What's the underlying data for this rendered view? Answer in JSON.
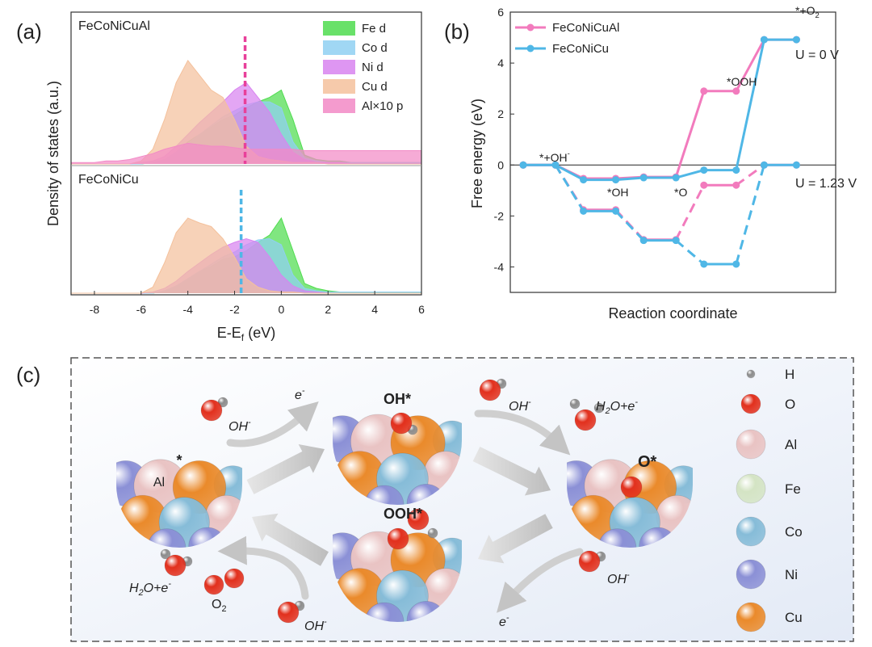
{
  "chart_data": [
    {
      "type": "area",
      "panel_label": "(a)",
      "ylabel": "Density of states (a.u.)",
      "xlabel": [
        "E-E",
        "f",
        " (eV)"
      ],
      "xlim": [
        -9,
        6
      ],
      "xticks": [
        -8,
        -6,
        -4,
        -2,
        0,
        2,
        4,
        6
      ],
      "ylim": [
        0,
        1
      ],
      "legend": "top-right",
      "x": [
        -9,
        -8.5,
        -8,
        -7.5,
        -7,
        -6.5,
        -6,
        -5.5,
        -5,
        -4.5,
        -4,
        -3.5,
        -3,
        -2.5,
        -2,
        -1.5,
        -1,
        -0.5,
        0,
        0.5,
        1,
        1.5,
        2,
        2.5,
        3,
        3.5,
        4,
        4.5,
        5,
        5.5,
        6
      ],
      "subplots": [
        {
          "title": "FeCoNiCuAl",
          "d_band_center": -1.55,
          "d_band_color": "#e8409a",
          "series": [
            {
              "name": "Fe d",
              "color": "#4fdc4f",
              "values": [
                0,
                0,
                0,
                0,
                0,
                0,
                0,
                0.01,
                0.03,
                0.08,
                0.15,
                0.2,
                0.25,
                0.3,
                0.33,
                0.38,
                0.42,
                0.45,
                0.5,
                0.3,
                0.06,
                0.03,
                0.02,
                0.02,
                0.01,
                0.01,
                0.01,
                0.01,
                0.01,
                0.01,
                0.01
              ]
            },
            {
              "name": "Co d",
              "color": "#8fd0f2",
              "values": [
                0,
                0,
                0,
                0,
                0,
                0,
                0,
                0.01,
                0.03,
                0.08,
                0.14,
                0.2,
                0.26,
                0.32,
                0.36,
                0.4,
                0.42,
                0.42,
                0.38,
                0.15,
                0.04,
                0.02,
                0.01,
                0.01,
                0.01,
                0.01,
                0.01,
                0.01,
                0.01,
                0.01,
                0.01
              ]
            },
            {
              "name": "Ni d",
              "color": "#d884f0",
              "values": [
                0,
                0,
                0,
                0,
                0,
                0,
                0.01,
                0.02,
                0.05,
                0.12,
                0.2,
                0.28,
                0.35,
                0.42,
                0.5,
                0.55,
                0.45,
                0.35,
                0.2,
                0.08,
                0.03,
                0.01,
                0.01,
                0.01,
                0,
                0,
                0,
                0,
                0,
                0,
                0
              ]
            },
            {
              "name": "Cu d",
              "color": "#f4c19c",
              "values": [
                0,
                0,
                0,
                0,
                0,
                0,
                0.02,
                0.1,
                0.3,
                0.55,
                0.7,
                0.6,
                0.5,
                0.45,
                0.3,
                0.12,
                0.05,
                0.03,
                0.02,
                0.01,
                0.01,
                0.01,
                0,
                0,
                0,
                0,
                0,
                0,
                0,
                0,
                0
              ]
            },
            {
              "name": "Al×10 p",
              "color": "#f28ac6",
              "values": [
                0.01,
                0.01,
                0.01,
                0.02,
                0.02,
                0.03,
                0.05,
                0.07,
                0.1,
                0.12,
                0.14,
                0.13,
                0.12,
                0.12,
                0.11,
                0.1,
                0.1,
                0.1,
                0.1,
                0.1,
                0.09,
                0.09,
                0.09,
                0.09,
                0.09,
                0.09,
                0.09,
                0.09,
                0.09,
                0.09,
                0.09
              ]
            }
          ]
        },
        {
          "title": "FeCoNiCu",
          "d_band_center": -1.72,
          "d_band_color": "#4fb7e6",
          "series": [
            {
              "color": "#4fdc4f",
              "values": [
                0,
                0,
                0,
                0,
                0,
                0,
                0,
                0,
                0.02,
                0.06,
                0.12,
                0.18,
                0.22,
                0.28,
                0.3,
                0.35,
                0.42,
                0.48,
                0.62,
                0.35,
                0.08,
                0.04,
                0.02,
                0.01,
                0.01,
                0.01,
                0.01,
                0.01,
                0.01,
                0.01,
                0.01
              ]
            },
            {
              "color": "#8fd0f2",
              "values": [
                0,
                0,
                0,
                0,
                0,
                0,
                0,
                0,
                0.02,
                0.06,
                0.12,
                0.18,
                0.24,
                0.3,
                0.34,
                0.4,
                0.44,
                0.45,
                0.4,
                0.15,
                0.04,
                0.02,
                0.01,
                0.01,
                0.01,
                0.01,
                0.01,
                0.01,
                0.01,
                0.01,
                0.01
              ]
            },
            {
              "color": "#d884f0",
              "values": [
                0,
                0,
                0,
                0,
                0,
                0,
                0,
                0.01,
                0.04,
                0.1,
                0.18,
                0.25,
                0.32,
                0.38,
                0.42,
                0.45,
                0.42,
                0.3,
                0.15,
                0.06,
                0.02,
                0.01,
                0,
                0,
                0,
                0,
                0,
                0,
                0,
                0,
                0
              ]
            },
            {
              "color": "#f4c19c",
              "values": [
                0,
                0,
                0,
                0,
                0,
                0,
                0,
                0.05,
                0.25,
                0.5,
                0.62,
                0.58,
                0.55,
                0.45,
                0.3,
                0.12,
                0.05,
                0.02,
                0.01,
                0.01,
                0,
                0,
                0,
                0,
                0,
                0,
                0,
                0,
                0,
                0,
                0
              ]
            }
          ]
        }
      ]
    },
    {
      "type": "step",
      "panel_label": "(b)",
      "ylabel": "Free energy (eV)",
      "xlabel": "Reaction coordinate",
      "ylim": [
        -5,
        6
      ],
      "yticks": [
        -4,
        -2,
        0,
        2,
        4,
        6
      ],
      "legend": "top-left",
      "state_labels": [
        [
          "*+OH",
          "-"
        ],
        [
          "*OH"
        ],
        [
          "*O"
        ],
        [
          "*OOH"
        ],
        [
          "*+O",
          "2"
        ]
      ],
      "annotations": [
        "U = 0 V",
        "U = 1.23 V"
      ],
      "series": [
        {
          "color": "#f27bbd",
          "dashed": true,
          "values": [
            0,
            -1.76,
            -2.93,
            -0.79,
            0
          ]
        },
        {
          "color": "#4fb7e6",
          "dashed": true,
          "values": [
            0,
            -1.81,
            -2.96,
            -3.89,
            0
          ]
        },
        {
          "name": "FeCoNiCuAl",
          "color": "#f27bbd",
          "values": [
            0,
            -0.53,
            -0.47,
            2.9,
            4.92
          ]
        },
        {
          "name": "FeCoNiCu",
          "color": "#4fb7e6",
          "values": [
            0,
            -0.58,
            -0.5,
            -0.2,
            4.92
          ]
        }
      ]
    }
  ],
  "diagram": {
    "panel_label": "(c)",
    "states": [
      "*",
      "OH*",
      "O*",
      "OOH*"
    ],
    "site": "Al",
    "annotations": [
      [
        "e",
        "-"
      ],
      [
        "OH",
        "-"
      ],
      [
        "OH",
        "-"
      ],
      [
        "H",
        "2",
        "O+e",
        "-"
      ],
      [
        "OH",
        "-"
      ],
      [
        "e",
        "-"
      ],
      [
        "H",
        "2",
        "O+e",
        "-"
      ],
      [
        "O",
        "2"
      ],
      [
        "OH",
        "-"
      ]
    ],
    "legend": [
      {
        "name": "H",
        "color": "#8c8c8c"
      },
      {
        "name": "O",
        "color": "#e2301d"
      },
      {
        "name": "Al",
        "color": "#e9c3c3"
      },
      {
        "name": "Fe",
        "color": "#d4e4c4"
      },
      {
        "name": "Co",
        "color": "#86bcd8"
      },
      {
        "name": "Ni",
        "color": "#8b90d6"
      },
      {
        "name": "Cu",
        "color": "#ea8a2b"
      }
    ]
  }
}
